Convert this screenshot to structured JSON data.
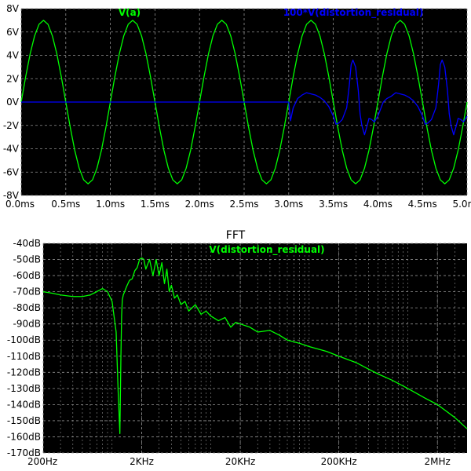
{
  "colors": {
    "green": "#00ff00",
    "blue": "#0000ff",
    "background": "#000000",
    "grid": "#909090"
  },
  "chart_data": [
    {
      "type": "line",
      "xlim": [
        0,
        5
      ],
      "ylim": [
        -8,
        8
      ],
      "grid": true,
      "legend_position": "top",
      "x_ticks": [
        {
          "v": 0,
          "label": "0.0ms"
        },
        {
          "v": 0.5,
          "label": "0.5ms"
        },
        {
          "v": 1,
          "label": "1.0ms"
        },
        {
          "v": 1.5,
          "label": "1.5ms"
        },
        {
          "v": 2,
          "label": "2.0ms"
        },
        {
          "v": 2.5,
          "label": "2.5ms"
        },
        {
          "v": 3,
          "label": "3.0ms"
        },
        {
          "v": 3.5,
          "label": "3.5ms"
        },
        {
          "v": 4,
          "label": "4.0ms"
        },
        {
          "v": 4.5,
          "label": "4.5ms"
        },
        {
          "v": 5,
          "label": "5.0ms"
        }
      ],
      "y_ticks": [
        {
          "v": 8,
          "label": "8V"
        },
        {
          "v": 6,
          "label": "6V"
        },
        {
          "v": 4,
          "label": "4V"
        },
        {
          "v": 2,
          "label": "2V"
        },
        {
          "v": 0,
          "label": "0V"
        },
        {
          "v": -2,
          "label": "-2V"
        },
        {
          "v": -4,
          "label": "-4V"
        },
        {
          "v": -6,
          "label": "-6V"
        },
        {
          "v": -8,
          "label": "-8V"
        }
      ],
      "series": [
        {
          "name": "V(a)",
          "color": "#00ff00",
          "x": [
            0,
            0.05,
            0.1,
            0.15,
            0.2,
            0.25,
            0.3,
            0.35,
            0.4,
            0.45,
            0.5,
            0.55,
            0.6,
            0.65,
            0.7,
            0.75,
            0.8,
            0.85,
            0.9,
            0.95,
            1.0,
            1.05,
            1.1,
            1.15,
            1.2,
            1.25,
            1.3,
            1.35,
            1.4,
            1.45,
            1.5,
            1.55,
            1.6,
            1.65,
            1.7,
            1.75,
            1.8,
            1.85,
            1.9,
            1.95,
            2.0,
            2.05,
            2.1,
            2.15,
            2.2,
            2.25,
            2.3,
            2.35,
            2.4,
            2.45,
            2.5,
            2.55,
            2.6,
            2.65,
            2.7,
            2.75,
            2.8,
            2.85,
            2.9,
            2.95,
            3.0,
            3.05,
            3.1,
            3.15,
            3.2,
            3.25,
            3.3,
            3.35,
            3.4,
            3.45,
            3.5,
            3.55,
            3.6,
            3.65,
            3.7,
            3.75,
            3.8,
            3.85,
            3.9,
            3.95,
            4.0,
            4.05,
            4.1,
            4.15,
            4.2,
            4.25,
            4.3,
            4.35,
            4.4,
            4.45,
            4.5,
            4.55,
            4.6,
            4.65,
            4.7,
            4.75,
            4.8,
            4.85,
            4.9,
            4.95,
            5.0
          ],
          "y": [
            0,
            2.16,
            4.12,
            5.66,
            6.66,
            7.0,
            6.66,
            5.66,
            4.12,
            2.16,
            0,
            -2.16,
            -4.12,
            -5.66,
            -6.66,
            -7.0,
            -6.66,
            -5.66,
            -4.12,
            -2.16,
            0,
            2.16,
            4.12,
            5.66,
            6.66,
            7.0,
            6.66,
            5.66,
            4.12,
            2.16,
            0,
            -2.16,
            -4.12,
            -5.66,
            -6.66,
            -7.0,
            -6.66,
            -5.66,
            -4.12,
            -2.16,
            0,
            2.16,
            4.12,
            5.66,
            6.66,
            7.0,
            6.66,
            5.66,
            4.12,
            2.16,
            0,
            -2.16,
            -4.12,
            -5.66,
            -6.66,
            -7.0,
            -6.66,
            -5.66,
            -4.12,
            -2.16,
            0,
            2.16,
            4.12,
            5.66,
            6.66,
            7.0,
            6.66,
            5.66,
            4.12,
            2.16,
            0,
            -2.16,
            -4.12,
            -5.66,
            -6.66,
            -7.0,
            -6.66,
            -5.66,
            -4.12,
            -2.16,
            0,
            2.16,
            4.12,
            5.66,
            6.66,
            7.0,
            6.66,
            5.66,
            4.12,
            2.16,
            0,
            -2.16,
            -4.12,
            -5.66,
            -6.66,
            -7.0,
            -6.66,
            -5.66,
            -4.12,
            -2.16,
            0
          ]
        },
        {
          "name": "100*V(distortion_residual)",
          "color": "#0000ff",
          "x": [
            0,
            3.0,
            3.02,
            3.05,
            3.1,
            3.15,
            3.2,
            3.25,
            3.3,
            3.35,
            3.4,
            3.45,
            3.5,
            3.53,
            3.56,
            3.6,
            3.65,
            3.68,
            3.7,
            3.72,
            3.75,
            3.78,
            3.8,
            3.82,
            3.85,
            3.88,
            3.9,
            3.93,
            3.96,
            4.0,
            4.03,
            4.06,
            4.1,
            4.15,
            4.2,
            4.25,
            4.3,
            4.35,
            4.4,
            4.45,
            4.5,
            4.53,
            4.56,
            4.6,
            4.65,
            4.68,
            4.7,
            4.72,
            4.75,
            4.78,
            4.8,
            4.82,
            4.85,
            4.88,
            4.9,
            4.93,
            4.96,
            5.0
          ],
          "y": [
            0,
            0,
            -1.6,
            -0.5,
            0.3,
            0.6,
            0.8,
            0.7,
            0.6,
            0.4,
            0.1,
            -0.4,
            -1.2,
            -1.9,
            -1.8,
            -1.5,
            -0.5,
            1.5,
            3.2,
            3.6,
            3.0,
            1.0,
            -1.0,
            -2.0,
            -2.8,
            -2.0,
            -1.4,
            -1.5,
            -1.7,
            -1.2,
            -0.6,
            0.0,
            0.3,
            0.5,
            0.8,
            0.7,
            0.6,
            0.4,
            0.1,
            -0.4,
            -1.2,
            -1.9,
            -1.8,
            -1.5,
            -0.5,
            1.5,
            3.2,
            3.6,
            3.0,
            1.0,
            -1.0,
            -2.0,
            -2.8,
            -2.0,
            -1.4,
            -1.5,
            -1.7,
            -1.2
          ]
        }
      ]
    },
    {
      "type": "line",
      "title": "FFT",
      "xscale": "log",
      "xlim": [
        200,
        4000000
      ],
      "ylim": [
        -170,
        -40
      ],
      "grid": true,
      "legend_position": "top",
      "x_ticks": [
        {
          "v": 200,
          "label": "200Hz"
        },
        {
          "v": 2000,
          "label": "2KHz"
        },
        {
          "v": 20000,
          "label": "20KHz"
        },
        {
          "v": 200000,
          "label": "200KHz"
        },
        {
          "v": 2000000,
          "label": "2MHz"
        }
      ],
      "y_ticks": [
        {
          "v": -40,
          "label": "-40dB"
        },
        {
          "v": -50,
          "label": "-50dB"
        },
        {
          "v": -60,
          "label": "-60dB"
        },
        {
          "v": -70,
          "label": "-70dB"
        },
        {
          "v": -80,
          "label": "-80dB"
        },
        {
          "v": -90,
          "label": "-90dB"
        },
        {
          "v": -100,
          "label": "-100dB"
        },
        {
          "v": -110,
          "label": "-110dB"
        },
        {
          "v": -120,
          "label": "-120dB"
        },
        {
          "v": -130,
          "label": "-130dB"
        },
        {
          "v": -140,
          "label": "-140dB"
        },
        {
          "v": -150,
          "label": "-150dB"
        },
        {
          "v": -160,
          "label": "-160dB"
        },
        {
          "v": -170,
          "label": "-170dB"
        }
      ],
      "series": [
        {
          "name": "V(distortion_residual)",
          "color": "#00ff00",
          "x": [
            200,
            250,
            300,
            400,
            500,
            600,
            700,
            800,
            900,
            1000,
            1100,
            1150,
            1200,
            1230,
            1250,
            1270,
            1300,
            1400,
            1500,
            1600,
            1700,
            1800,
            1900,
            2000,
            2100,
            2200,
            2400,
            2600,
            2800,
            3000,
            3200,
            3400,
            3600,
            3800,
            4000,
            4300,
            4600,
            5000,
            5500,
            6000,
            7000,
            8000,
            9000,
            10000,
            12000,
            14000,
            16000,
            18000,
            20000,
            25000,
            30000,
            40000,
            50000,
            60000,
            80000,
            100000,
            150000,
            200000,
            300000,
            400000,
            500000,
            700000,
            1000000,
            1500000,
            2000000,
            3000000,
            4000000
          ],
          "y": [
            -70,
            -71,
            -72,
            -73,
            -73,
            -72,
            -70,
            -68,
            -70,
            -76,
            -95,
            -130,
            -158,
            -110,
            -85,
            -75,
            -72,
            -67,
            -63,
            -62,
            -57,
            -55,
            -50,
            -49,
            -50,
            -56,
            -50,
            -60,
            -50,
            -60,
            -52,
            -65,
            -56,
            -70,
            -66,
            -74,
            -72,
            -78,
            -76,
            -82,
            -78,
            -84,
            -82,
            -85,
            -88,
            -86,
            -92,
            -89,
            -90,
            -92,
            -95,
            -94,
            -97,
            -100,
            -102,
            -104,
            -107,
            -110,
            -114,
            -118,
            -121,
            -125,
            -130,
            -136,
            -140,
            -148,
            -155
          ]
        }
      ]
    }
  ]
}
